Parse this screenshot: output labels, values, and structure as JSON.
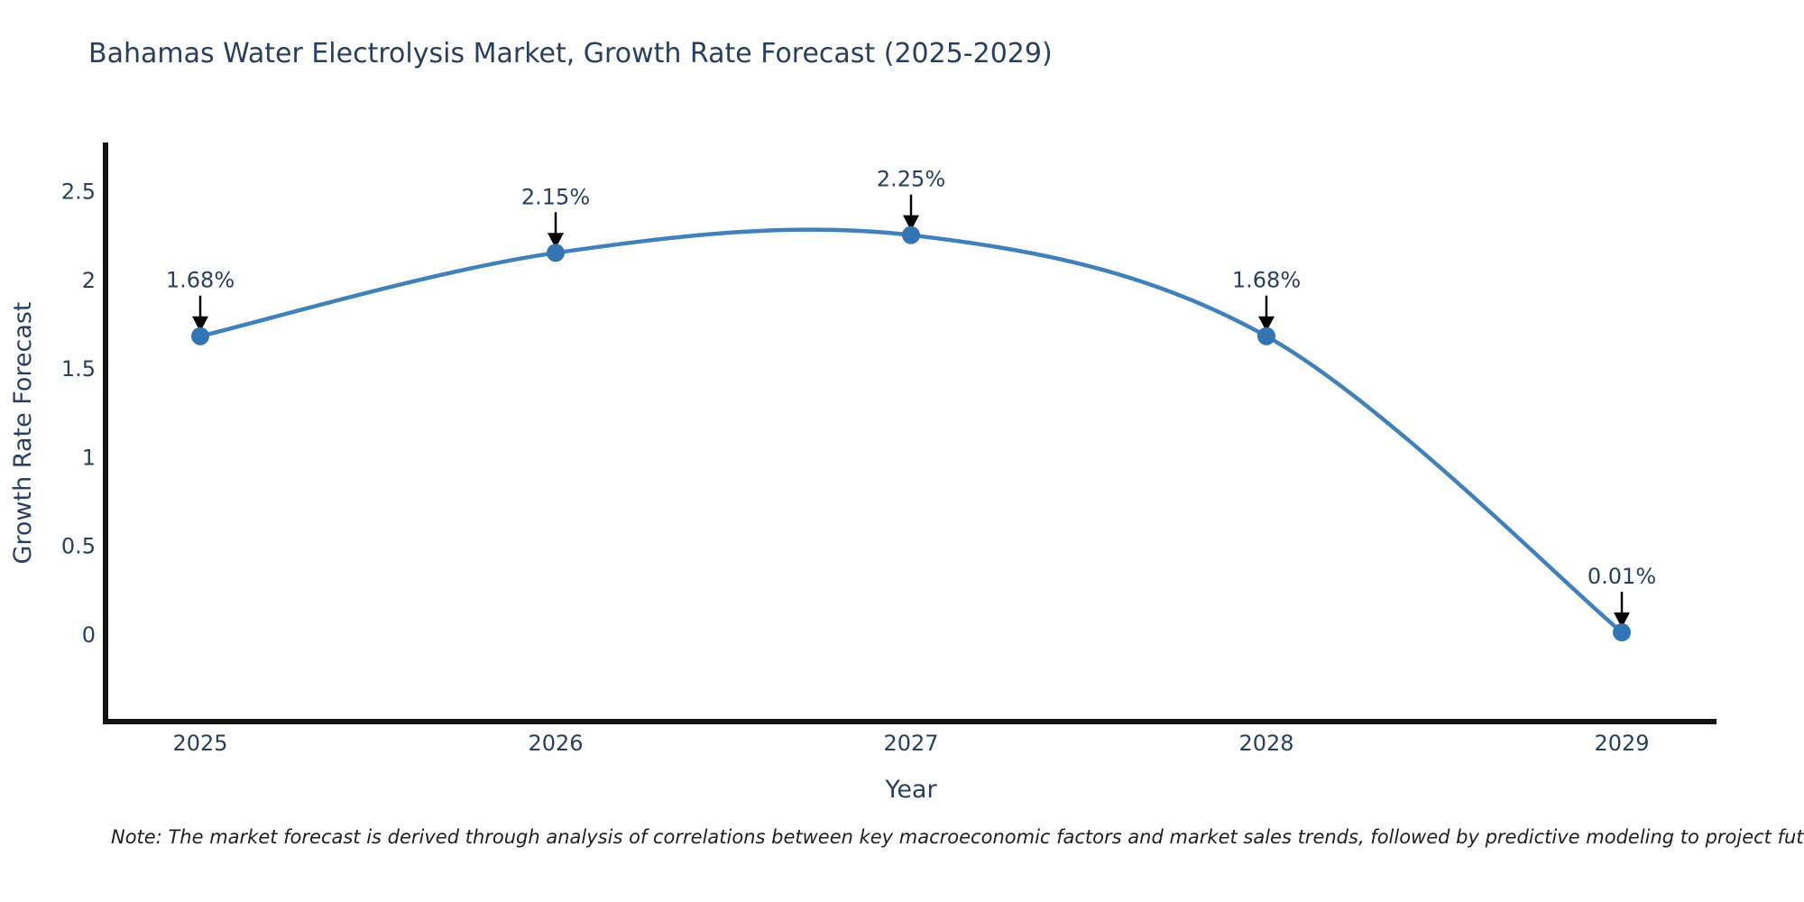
{
  "title": "Bahamas Water Electrolysis Market, Growth Rate Forecast (2025-2029)",
  "note": {
    "text": "Note: The market forecast is derived through analysis of correlations between key macroeconomic factors and market sales trends, followed by predictive modeling to project future sales"
  },
  "chart_data": {
    "type": "line",
    "title": "Bahamas Water Electrolysis Market, Growth Rate Forecast (2025-2029)",
    "x": [
      2025,
      2026,
      2027,
      2028,
      2029
    ],
    "values": [
      1.68,
      2.15,
      2.25,
      1.68,
      0.01
    ],
    "point_labels": [
      "1.68%",
      "2.15%",
      "2.25%",
      "1.68%",
      "0.01%"
    ],
    "xtick_labels": [
      "2025",
      "2026",
      "2027",
      "2028",
      "2029"
    ],
    "ytick_labels": [
      "0",
      "0.5",
      "1",
      "1.5",
      "2",
      "2.5"
    ],
    "ytick_values": [
      0,
      0.5,
      1,
      1.5,
      2,
      2.5
    ],
    "xlabel": "Year",
    "ylabel": "Growth Rate Forecast",
    "ylim": [
      -0.5,
      2.77
    ],
    "grid": false,
    "legend": false,
    "line_shape": "spline",
    "line_color": "#4181bb",
    "marker_color": "#3474b3",
    "arrow_color": "#000000",
    "axis_color": "#141414",
    "text_color": "#2a3f5f"
  }
}
